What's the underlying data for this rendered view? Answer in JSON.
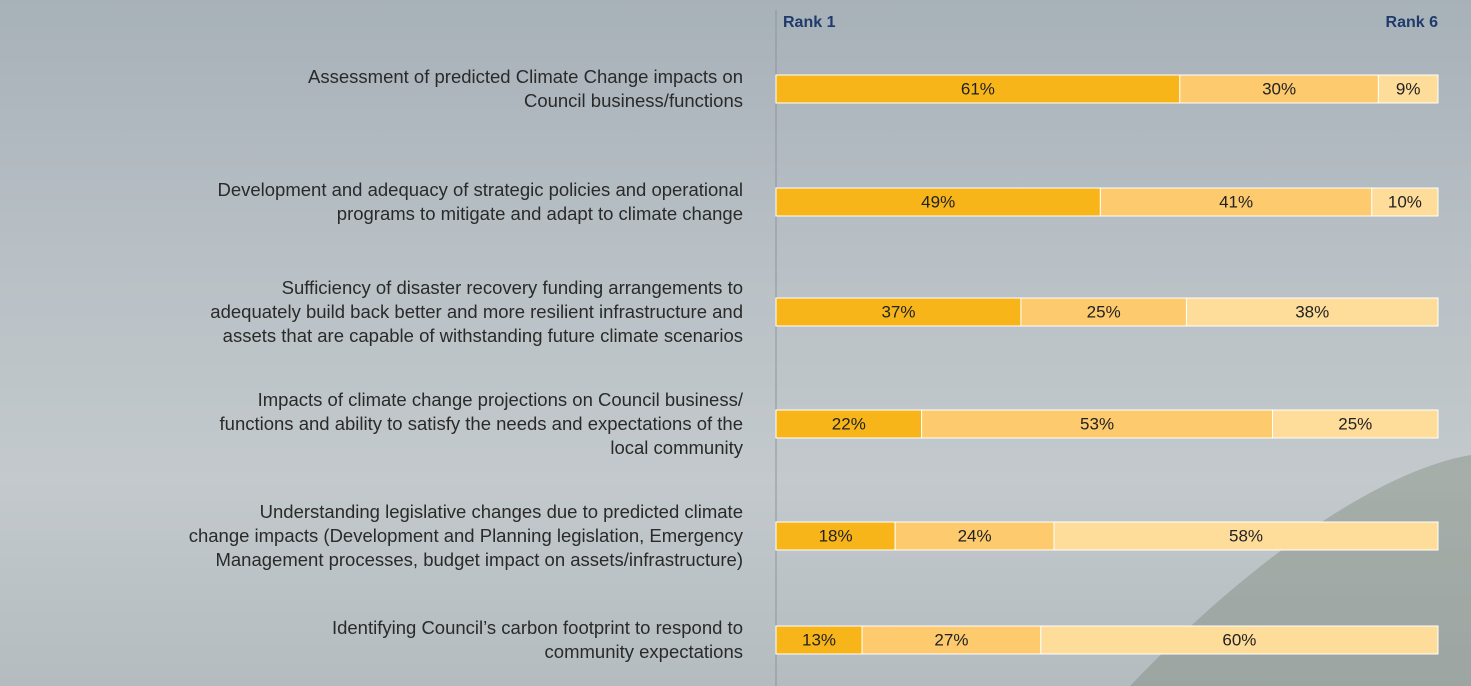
{
  "chart_data": {
    "type": "stacked-bar-100",
    "orientation": "horizontal",
    "start_label": "Rank 1",
    "end_label": "Rank 6",
    "categories": [
      "Assessment of predicted Climate Change impacts on\nCouncil business/functions",
      "Development and adequacy of strategic policies and operational\nprograms to mitigate and adapt to climate change",
      "Sufficiency of disaster recovery funding arrangements to\nadequately build back better and more resilient infrastructure and\nassets that are capable of withstanding future climate scenarios",
      "Impacts of climate change projections on Council business/\nfunctions and ability to satisfy the needs and expectations of the\nlocal community",
      "Understanding legislative changes due to predicted climate\nchange impacts (Development and Planning legislation, Emergency\nManagement processes, budget impact on assets/infrastructure)",
      "Identifying Council’s carbon footprint to respond to\ncommunity expectations"
    ],
    "series": [
      {
        "color": "#f7b519",
        "values": [
          61,
          49,
          37,
          22,
          18,
          13
        ],
        "value_labels": [
          "61%",
          "49%",
          "37%",
          "22%",
          "18%",
          "13%"
        ]
      },
      {
        "color": "#fdca6e",
        "values": [
          30,
          41,
          25,
          53,
          24,
          27
        ],
        "value_labels": [
          "30%",
          "41%",
          "25%",
          "53%",
          "24%",
          "27%"
        ]
      },
      {
        "color": "#fedc9a",
        "values": [
          9,
          10,
          38,
          25,
          58,
          60
        ],
        "value_labels": [
          "9%",
          "10%",
          "38%",
          "25%",
          "58%",
          "60%"
        ]
      }
    ],
    "xlim": [
      0,
      100
    ]
  }
}
